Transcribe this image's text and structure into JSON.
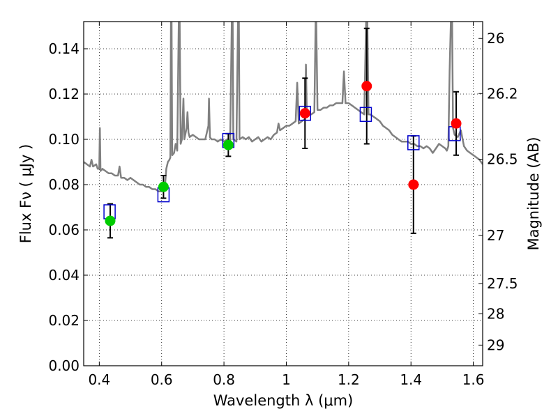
{
  "chart_data": {
    "type": "scatter",
    "xlabel": "Wavelength  λ (μm)",
    "ylabel": "Flux  Fν  ( μJy )",
    "ylabel_right": "Magnitude (AB)",
    "xlim": [
      0.35,
      1.63
    ],
    "ylim": [
      0.0,
      0.152
    ],
    "grid": true,
    "x_ticks": [
      {
        "value": 0.4,
        "label": "0.4"
      },
      {
        "value": 0.6,
        "label": "0.6"
      },
      {
        "value": 0.8,
        "label": "0.8"
      },
      {
        "value": 1.0,
        "label": "1"
      },
      {
        "value": 1.2,
        "label": "1.2"
      },
      {
        "value": 1.4,
        "label": "1.4"
      },
      {
        "value": 1.6,
        "label": "1.6"
      }
    ],
    "y_ticks": [
      {
        "value": 0.0,
        "label": "0.00"
      },
      {
        "value": 0.02,
        "label": "0.02"
      },
      {
        "value": 0.04,
        "label": "0.04"
      },
      {
        "value": 0.06,
        "label": "0.06"
      },
      {
        "value": 0.08,
        "label": "0.08"
      },
      {
        "value": 0.1,
        "label": "0.10"
      },
      {
        "value": 0.12,
        "label": "0.12"
      },
      {
        "value": 0.14,
        "label": "0.14"
      }
    ],
    "y_ticks_right": [
      {
        "value": 26.0,
        "label": "26"
      },
      {
        "value": 26.2,
        "label": "26.2"
      },
      {
        "value": 26.5,
        "label": "26.5"
      },
      {
        "value": 27.0,
        "label": "27"
      },
      {
        "value": 27.5,
        "label": "27.5"
      },
      {
        "value": 28.0,
        "label": "28"
      },
      {
        "value": 29.0,
        "label": "29"
      }
    ],
    "model_spectrum": {
      "color": "#808080",
      "points": [
        [
          0.35,
          0.09
        ],
        [
          0.36,
          0.089
        ],
        [
          0.37,
          0.088
        ],
        [
          0.375,
          0.091
        ],
        [
          0.38,
          0.088
        ],
        [
          0.39,
          0.089
        ],
        [
          0.395,
          0.087
        ],
        [
          0.4,
          0.087
        ],
        [
          0.402,
          0.105
        ],
        [
          0.404,
          0.086
        ],
        [
          0.41,
          0.087
        ],
        [
          0.42,
          0.086
        ],
        [
          0.43,
          0.085
        ],
        [
          0.44,
          0.085
        ],
        [
          0.45,
          0.084
        ],
        [
          0.46,
          0.084
        ],
        [
          0.465,
          0.088
        ],
        [
          0.47,
          0.083
        ],
        [
          0.48,
          0.083
        ],
        [
          0.49,
          0.082
        ],
        [
          0.5,
          0.083
        ],
        [
          0.51,
          0.082
        ],
        [
          0.52,
          0.081
        ],
        [
          0.53,
          0.08
        ],
        [
          0.54,
          0.08
        ],
        [
          0.55,
          0.079
        ],
        [
          0.56,
          0.079
        ],
        [
          0.57,
          0.078
        ],
        [
          0.58,
          0.078
        ],
        [
          0.59,
          0.077
        ],
        [
          0.6,
          0.077
        ],
        [
          0.61,
          0.078
        ],
        [
          0.615,
          0.087
        ],
        [
          0.62,
          0.09
        ],
        [
          0.625,
          0.091
        ],
        [
          0.628,
          0.092
        ],
        [
          0.63,
          0.152
        ],
        [
          0.632,
          0.152
        ],
        [
          0.634,
          0.093
        ],
        [
          0.64,
          0.094
        ],
        [
          0.645,
          0.098
        ],
        [
          0.65,
          0.095
        ],
        [
          0.655,
          0.152
        ],
        [
          0.658,
          0.152
        ],
        [
          0.661,
          0.098
        ],
        [
          0.665,
          0.1
        ],
        [
          0.67,
          0.118
        ],
        [
          0.673,
          0.1
        ],
        [
          0.68,
          0.105
        ],
        [
          0.683,
          0.112
        ],
        [
          0.686,
          0.103
        ],
        [
          0.69,
          0.101
        ],
        [
          0.7,
          0.102
        ],
        [
          0.71,
          0.101
        ],
        [
          0.72,
          0.1
        ],
        [
          0.73,
          0.1
        ],
        [
          0.74,
          0.1
        ],
        [
          0.75,
          0.106
        ],
        [
          0.752,
          0.118
        ],
        [
          0.755,
          0.101
        ],
        [
          0.76,
          0.1
        ],
        [
          0.77,
          0.1
        ],
        [
          0.78,
          0.099
        ],
        [
          0.79,
          0.1
        ],
        [
          0.8,
          0.099
        ],
        [
          0.81,
          0.1
        ],
        [
          0.815,
          0.098
        ],
        [
          0.82,
          0.099
        ],
        [
          0.825,
          0.152
        ],
        [
          0.828,
          0.152
        ],
        [
          0.83,
          0.1
        ],
        [
          0.84,
          0.099
        ],
        [
          0.845,
          0.152
        ],
        [
          0.848,
          0.152
        ],
        [
          0.85,
          0.1
        ],
        [
          0.86,
          0.101
        ],
        [
          0.87,
          0.1
        ],
        [
          0.88,
          0.101
        ],
        [
          0.89,
          0.099
        ],
        [
          0.9,
          0.1
        ],
        [
          0.91,
          0.101
        ],
        [
          0.92,
          0.099
        ],
        [
          0.93,
          0.1
        ],
        [
          0.94,
          0.101
        ],
        [
          0.95,
          0.1
        ],
        [
          0.96,
          0.102
        ],
        [
          0.97,
          0.103
        ],
        [
          0.975,
          0.107
        ],
        [
          0.98,
          0.104
        ],
        [
          0.99,
          0.105
        ],
        [
          1.0,
          0.106
        ],
        [
          1.01,
          0.106
        ],
        [
          1.02,
          0.107
        ],
        [
          1.03,
          0.108
        ],
        [
          1.035,
          0.125
        ],
        [
          1.04,
          0.107
        ],
        [
          1.05,
          0.108
        ],
        [
          1.06,
          0.109
        ],
        [
          1.063,
          0.133
        ],
        [
          1.066,
          0.11
        ],
        [
          1.07,
          0.111
        ],
        [
          1.08,
          0.111
        ],
        [
          1.09,
          0.112
        ],
        [
          1.094,
          0.152
        ],
        [
          1.096,
          0.152
        ],
        [
          1.1,
          0.113
        ],
        [
          1.11,
          0.113
        ],
        [
          1.12,
          0.114
        ],
        [
          1.13,
          0.114
        ],
        [
          1.14,
          0.115
        ],
        [
          1.15,
          0.115
        ],
        [
          1.16,
          0.116
        ],
        [
          1.17,
          0.116
        ],
        [
          1.18,
          0.116
        ],
        [
          1.185,
          0.13
        ],
        [
          1.19,
          0.116
        ],
        [
          1.2,
          0.116
        ],
        [
          1.21,
          0.115
        ],
        [
          1.22,
          0.114
        ],
        [
          1.23,
          0.113
        ],
        [
          1.24,
          0.112
        ],
        [
          1.25,
          0.111
        ],
        [
          1.256,
          0.152
        ],
        [
          1.26,
          0.152
        ],
        [
          1.264,
          0.111
        ],
        [
          1.27,
          0.111
        ],
        [
          1.28,
          0.11
        ],
        [
          1.29,
          0.109
        ],
        [
          1.3,
          0.108
        ],
        [
          1.31,
          0.106
        ],
        [
          1.32,
          0.105
        ],
        [
          1.33,
          0.104
        ],
        [
          1.34,
          0.102
        ],
        [
          1.35,
          0.101
        ],
        [
          1.36,
          0.1
        ],
        [
          1.37,
          0.099
        ],
        [
          1.38,
          0.099
        ],
        [
          1.39,
          0.099
        ],
        [
          1.4,
          0.098
        ],
        [
          1.41,
          0.098
        ],
        [
          1.42,
          0.097
        ],
        [
          1.43,
          0.097
        ],
        [
          1.44,
          0.096
        ],
        [
          1.45,
          0.097
        ],
        [
          1.46,
          0.096
        ],
        [
          1.47,
          0.094
        ],
        [
          1.48,
          0.096
        ],
        [
          1.49,
          0.098
        ],
        [
          1.5,
          0.097
        ],
        [
          1.51,
          0.096
        ],
        [
          1.515,
          0.095
        ],
        [
          1.52,
          0.097
        ],
        [
          1.524,
          0.13
        ],
        [
          1.528,
          0.152
        ],
        [
          1.532,
          0.152
        ],
        [
          1.535,
          0.105
        ],
        [
          1.54,
          0.102
        ],
        [
          1.55,
          0.101
        ],
        [
          1.56,
          0.104
        ],
        [
          1.57,
          0.097
        ],
        [
          1.58,
          0.095
        ],
        [
          1.59,
          0.094
        ],
        [
          1.6,
          0.093
        ],
        [
          1.61,
          0.092
        ],
        [
          1.62,
          0.091
        ],
        [
          1.63,
          0.089
        ]
      ]
    },
    "model_photometry": {
      "color": "#0000cc",
      "points": [
        {
          "x": 0.433,
          "y": 0.068
        },
        {
          "x": 0.606,
          "y": 0.0755
        },
        {
          "x": 0.814,
          "y": 0.0995
        },
        {
          "x": 1.06,
          "y": 0.1115
        },
        {
          "x": 1.255,
          "y": 0.111
        },
        {
          "x": 1.408,
          "y": 0.0985
        },
        {
          "x": 1.54,
          "y": 0.1025
        }
      ]
    },
    "observed_optical": {
      "color": "#00cc00",
      "points": [
        {
          "x": 0.435,
          "y": 0.064,
          "err": 0.0075
        },
        {
          "x": 0.606,
          "y": 0.079,
          "err": 0.005
        },
        {
          "x": 0.814,
          "y": 0.0975,
          "err": 0.005
        }
      ]
    },
    "observed_nir": {
      "color": "#ff0000",
      "points": [
        {
          "x": 1.06,
          "y": 0.1115,
          "err": 0.0155
        },
        {
          "x": 1.258,
          "y": 0.1235,
          "err": 0.0255
        },
        {
          "x": 1.408,
          "y": 0.08,
          "err": 0.0215
        },
        {
          "x": 1.545,
          "y": 0.107,
          "err": 0.014
        }
      ]
    }
  }
}
